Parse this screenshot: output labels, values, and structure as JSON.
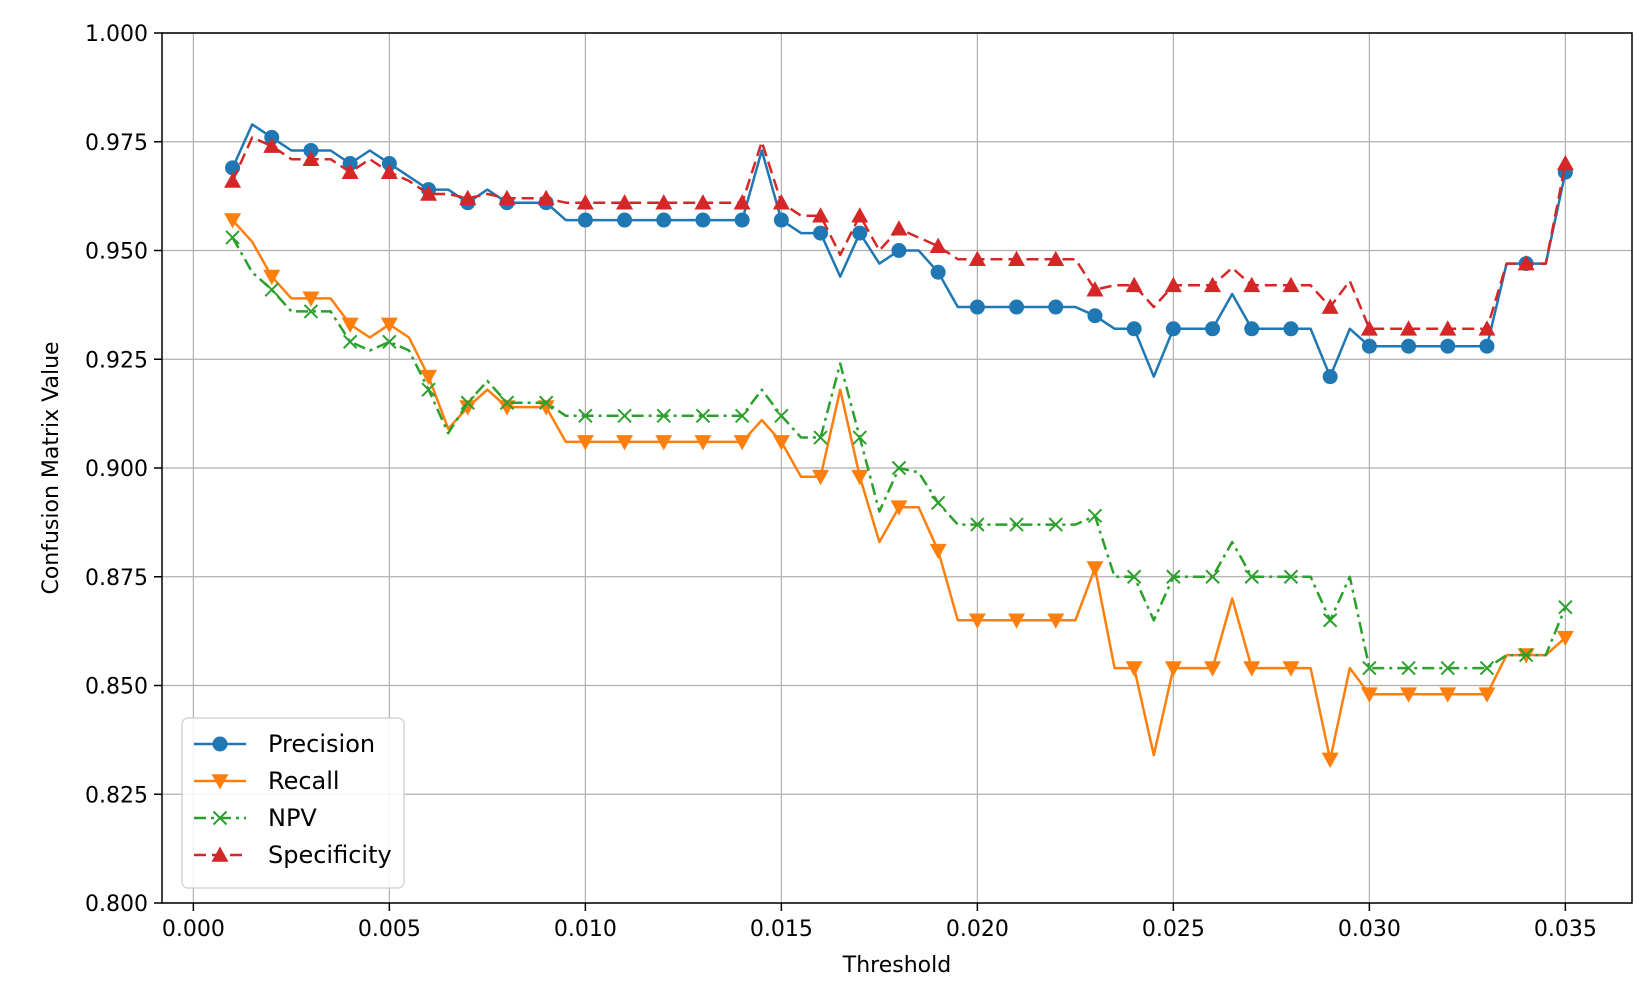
{
  "chart_data": {
    "type": "line",
    "title": "",
    "xlabel": "Threshold",
    "ylabel": "Confusion Matrix Value",
    "xlim": [
      -0.0008,
      0.0367
    ],
    "ylim": [
      0.8,
      1.0
    ],
    "xticks": [
      0.0,
      0.005,
      0.01,
      0.015,
      0.02,
      0.025,
      0.03,
      0.035
    ],
    "xtick_labels": [
      "0.000",
      "0.005",
      "0.010",
      "0.015",
      "0.020",
      "0.025",
      "0.030",
      "0.035"
    ],
    "yticks": [
      0.8,
      0.825,
      0.85,
      0.875,
      0.9,
      0.925,
      0.95,
      0.975,
      1.0
    ],
    "ytick_labels": [
      "0.800",
      "0.825",
      "0.850",
      "0.875",
      "0.900",
      "0.925",
      "0.950",
      "0.975",
      "1.000"
    ],
    "grid": true,
    "legend_position": "bottom-left",
    "x": [
      0.001,
      0.0015,
      0.002,
      0.0025,
      0.003,
      0.0035,
      0.004,
      0.0045,
      0.005,
      0.0055,
      0.006,
      0.0065,
      0.007,
      0.0075,
      0.008,
      0.0085,
      0.009,
      0.0095,
      0.01,
      0.0105,
      0.011,
      0.0115,
      0.012,
      0.0125,
      0.013,
      0.0135,
      0.014,
      0.0145,
      0.015,
      0.0155,
      0.016,
      0.0165,
      0.017,
      0.0175,
      0.018,
      0.0185,
      0.019,
      0.0195,
      0.02,
      0.0205,
      0.021,
      0.0215,
      0.022,
      0.0225,
      0.023,
      0.0235,
      0.024,
      0.0245,
      0.025,
      0.0255,
      0.026,
      0.0265,
      0.027,
      0.0275,
      0.028,
      0.0285,
      0.029,
      0.0295,
      0.03,
      0.0305,
      0.031,
      0.0315,
      0.032,
      0.0325,
      0.033,
      0.0335,
      0.034,
      0.0345,
      0.035
    ],
    "series": [
      {
        "name": "Precision",
        "color": "#1f77b4",
        "marker": "circle",
        "dash": "solid",
        "values": [
          0.969,
          0.979,
          0.976,
          0.973,
          0.973,
          0.973,
          0.97,
          0.973,
          0.97,
          0.967,
          0.964,
          0.964,
          0.961,
          0.964,
          0.961,
          0.961,
          0.961,
          0.957,
          0.957,
          0.957,
          0.957,
          0.957,
          0.957,
          0.957,
          0.957,
          0.957,
          0.957,
          0.973,
          0.957,
          0.954,
          0.954,
          0.944,
          0.954,
          0.947,
          0.95,
          0.95,
          0.945,
          0.937,
          0.937,
          0.937,
          0.937,
          0.937,
          0.937,
          0.937,
          0.935,
          0.932,
          0.932,
          0.921,
          0.932,
          0.932,
          0.932,
          0.94,
          0.932,
          0.932,
          0.932,
          0.932,
          0.921,
          0.932,
          0.928,
          0.928,
          0.928,
          0.928,
          0.928,
          0.928,
          0.928,
          0.947,
          0.947,
          0.947,
          0.968
        ]
      },
      {
        "name": "Recall",
        "color": "#ff7f0e",
        "marker": "triangle-down",
        "dash": "solid",
        "values": [
          0.957,
          0.952,
          0.944,
          0.939,
          0.939,
          0.939,
          0.933,
          0.93,
          0.933,
          0.93,
          0.921,
          0.909,
          0.914,
          0.918,
          0.914,
          0.914,
          0.914,
          0.906,
          0.906,
          0.906,
          0.906,
          0.906,
          0.906,
          0.906,
          0.906,
          0.906,
          0.906,
          0.911,
          0.906,
          0.898,
          0.898,
          0.918,
          0.898,
          0.883,
          0.891,
          0.891,
          0.881,
          0.865,
          0.865,
          0.865,
          0.865,
          0.865,
          0.865,
          0.865,
          0.877,
          0.854,
          0.854,
          0.834,
          0.854,
          0.854,
          0.854,
          0.87,
          0.854,
          0.854,
          0.854,
          0.854,
          0.833,
          0.854,
          0.848,
          0.848,
          0.848,
          0.848,
          0.848,
          0.848,
          0.848,
          0.857,
          0.857,
          0.857,
          0.861
        ]
      },
      {
        "name": "NPV",
        "color": "#2ca02c",
        "marker": "x",
        "dash": "dashdot",
        "values": [
          0.953,
          0.945,
          0.941,
          0.936,
          0.936,
          0.936,
          0.929,
          0.927,
          0.929,
          0.927,
          0.918,
          0.908,
          0.915,
          0.92,
          0.915,
          0.915,
          0.915,
          0.912,
          0.912,
          0.912,
          0.912,
          0.912,
          0.912,
          0.912,
          0.912,
          0.912,
          0.912,
          0.918,
          0.912,
          0.907,
          0.907,
          0.924,
          0.907,
          0.89,
          0.9,
          0.899,
          0.892,
          0.887,
          0.887,
          0.887,
          0.887,
          0.887,
          0.887,
          0.887,
          0.889,
          0.875,
          0.875,
          0.865,
          0.875,
          0.875,
          0.875,
          0.883,
          0.875,
          0.875,
          0.875,
          0.875,
          0.865,
          0.875,
          0.854,
          0.854,
          0.854,
          0.854,
          0.854,
          0.854,
          0.854,
          0.857,
          0.857,
          0.857,
          0.868
        ]
      },
      {
        "name": "Specificity",
        "color": "#d62728",
        "marker": "triangle-up",
        "dash": "dashed",
        "values": [
          0.966,
          0.976,
          0.974,
          0.971,
          0.971,
          0.971,
          0.968,
          0.971,
          0.968,
          0.966,
          0.963,
          0.963,
          0.962,
          0.963,
          0.962,
          0.962,
          0.962,
          0.961,
          0.961,
          0.961,
          0.961,
          0.961,
          0.961,
          0.961,
          0.961,
          0.961,
          0.961,
          0.975,
          0.961,
          0.958,
          0.958,
          0.949,
          0.958,
          0.95,
          0.955,
          0.953,
          0.951,
          0.948,
          0.948,
          0.948,
          0.948,
          0.948,
          0.948,
          0.948,
          0.941,
          0.942,
          0.942,
          0.937,
          0.942,
          0.942,
          0.942,
          0.946,
          0.942,
          0.942,
          0.942,
          0.942,
          0.937,
          0.943,
          0.932,
          0.932,
          0.932,
          0.932,
          0.932,
          0.932,
          0.932,
          0.947,
          0.947,
          0.947,
          0.97
        ]
      }
    ]
  }
}
